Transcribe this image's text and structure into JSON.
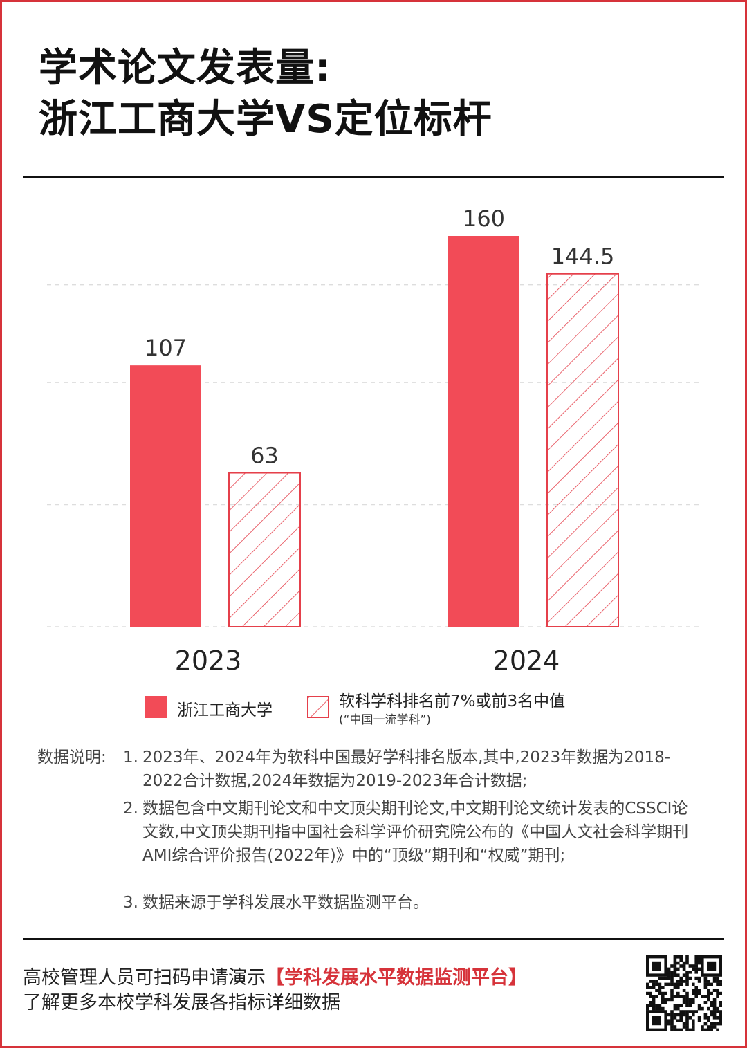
{
  "title_line1": "学术论文发表量:",
  "title_line2": "浙江工商大学VS定位标杆",
  "colors": {
    "accent": "#f24b57",
    "hatch": "#e5404b",
    "frame": "#d6333a"
  },
  "chart_data": {
    "type": "bar",
    "categories": [
      "2023",
      "2024"
    ],
    "series": [
      {
        "name": "浙江工商大学",
        "values": [
          107,
          160
        ],
        "style": "solid",
        "value_labels": [
          "107",
          "160"
        ]
      },
      {
        "name": "软科学科排名前7%或前3名中值",
        "name_note": "(“中国一流学科”)",
        "values": [
          63,
          144.5
        ],
        "style": "hatched",
        "value_labels": [
          "63",
          "144.5"
        ]
      }
    ],
    "ylim": [
      0,
      160
    ],
    "grid": true,
    "legend": "bottom"
  },
  "notes": {
    "lead": "数据说明:",
    "items": [
      {
        "num": "1.",
        "text": "2023年、2024年为软科中国最好学科排名版本,其中,2023年数据为2018-2022合计数据,2024年数据为2019-2023年合计数据;"
      },
      {
        "num": "2.",
        "text": "数据包含中文期刊论文和中文顶尖期刊论文,中文期刊论文统计发表的CSSCI论文数,中文顶尖期刊指中国社会科学评价研究院公布的《中国人文社会科学期刊AMI综合评价报告(2022年)》中的“顶级”期刊和“权威”期刊;"
      },
      {
        "num": "3.",
        "text": "数据来源于学科发展水平数据监测平台。"
      }
    ]
  },
  "footer": {
    "line1_prefix": "高校管理人员可扫码申请演示",
    "line1_highlight": "【学科发展水平数据监测平台】",
    "line2": "了解更多本校学科发展各指标详细数据"
  },
  "qr_icon": "qr-code-icon"
}
